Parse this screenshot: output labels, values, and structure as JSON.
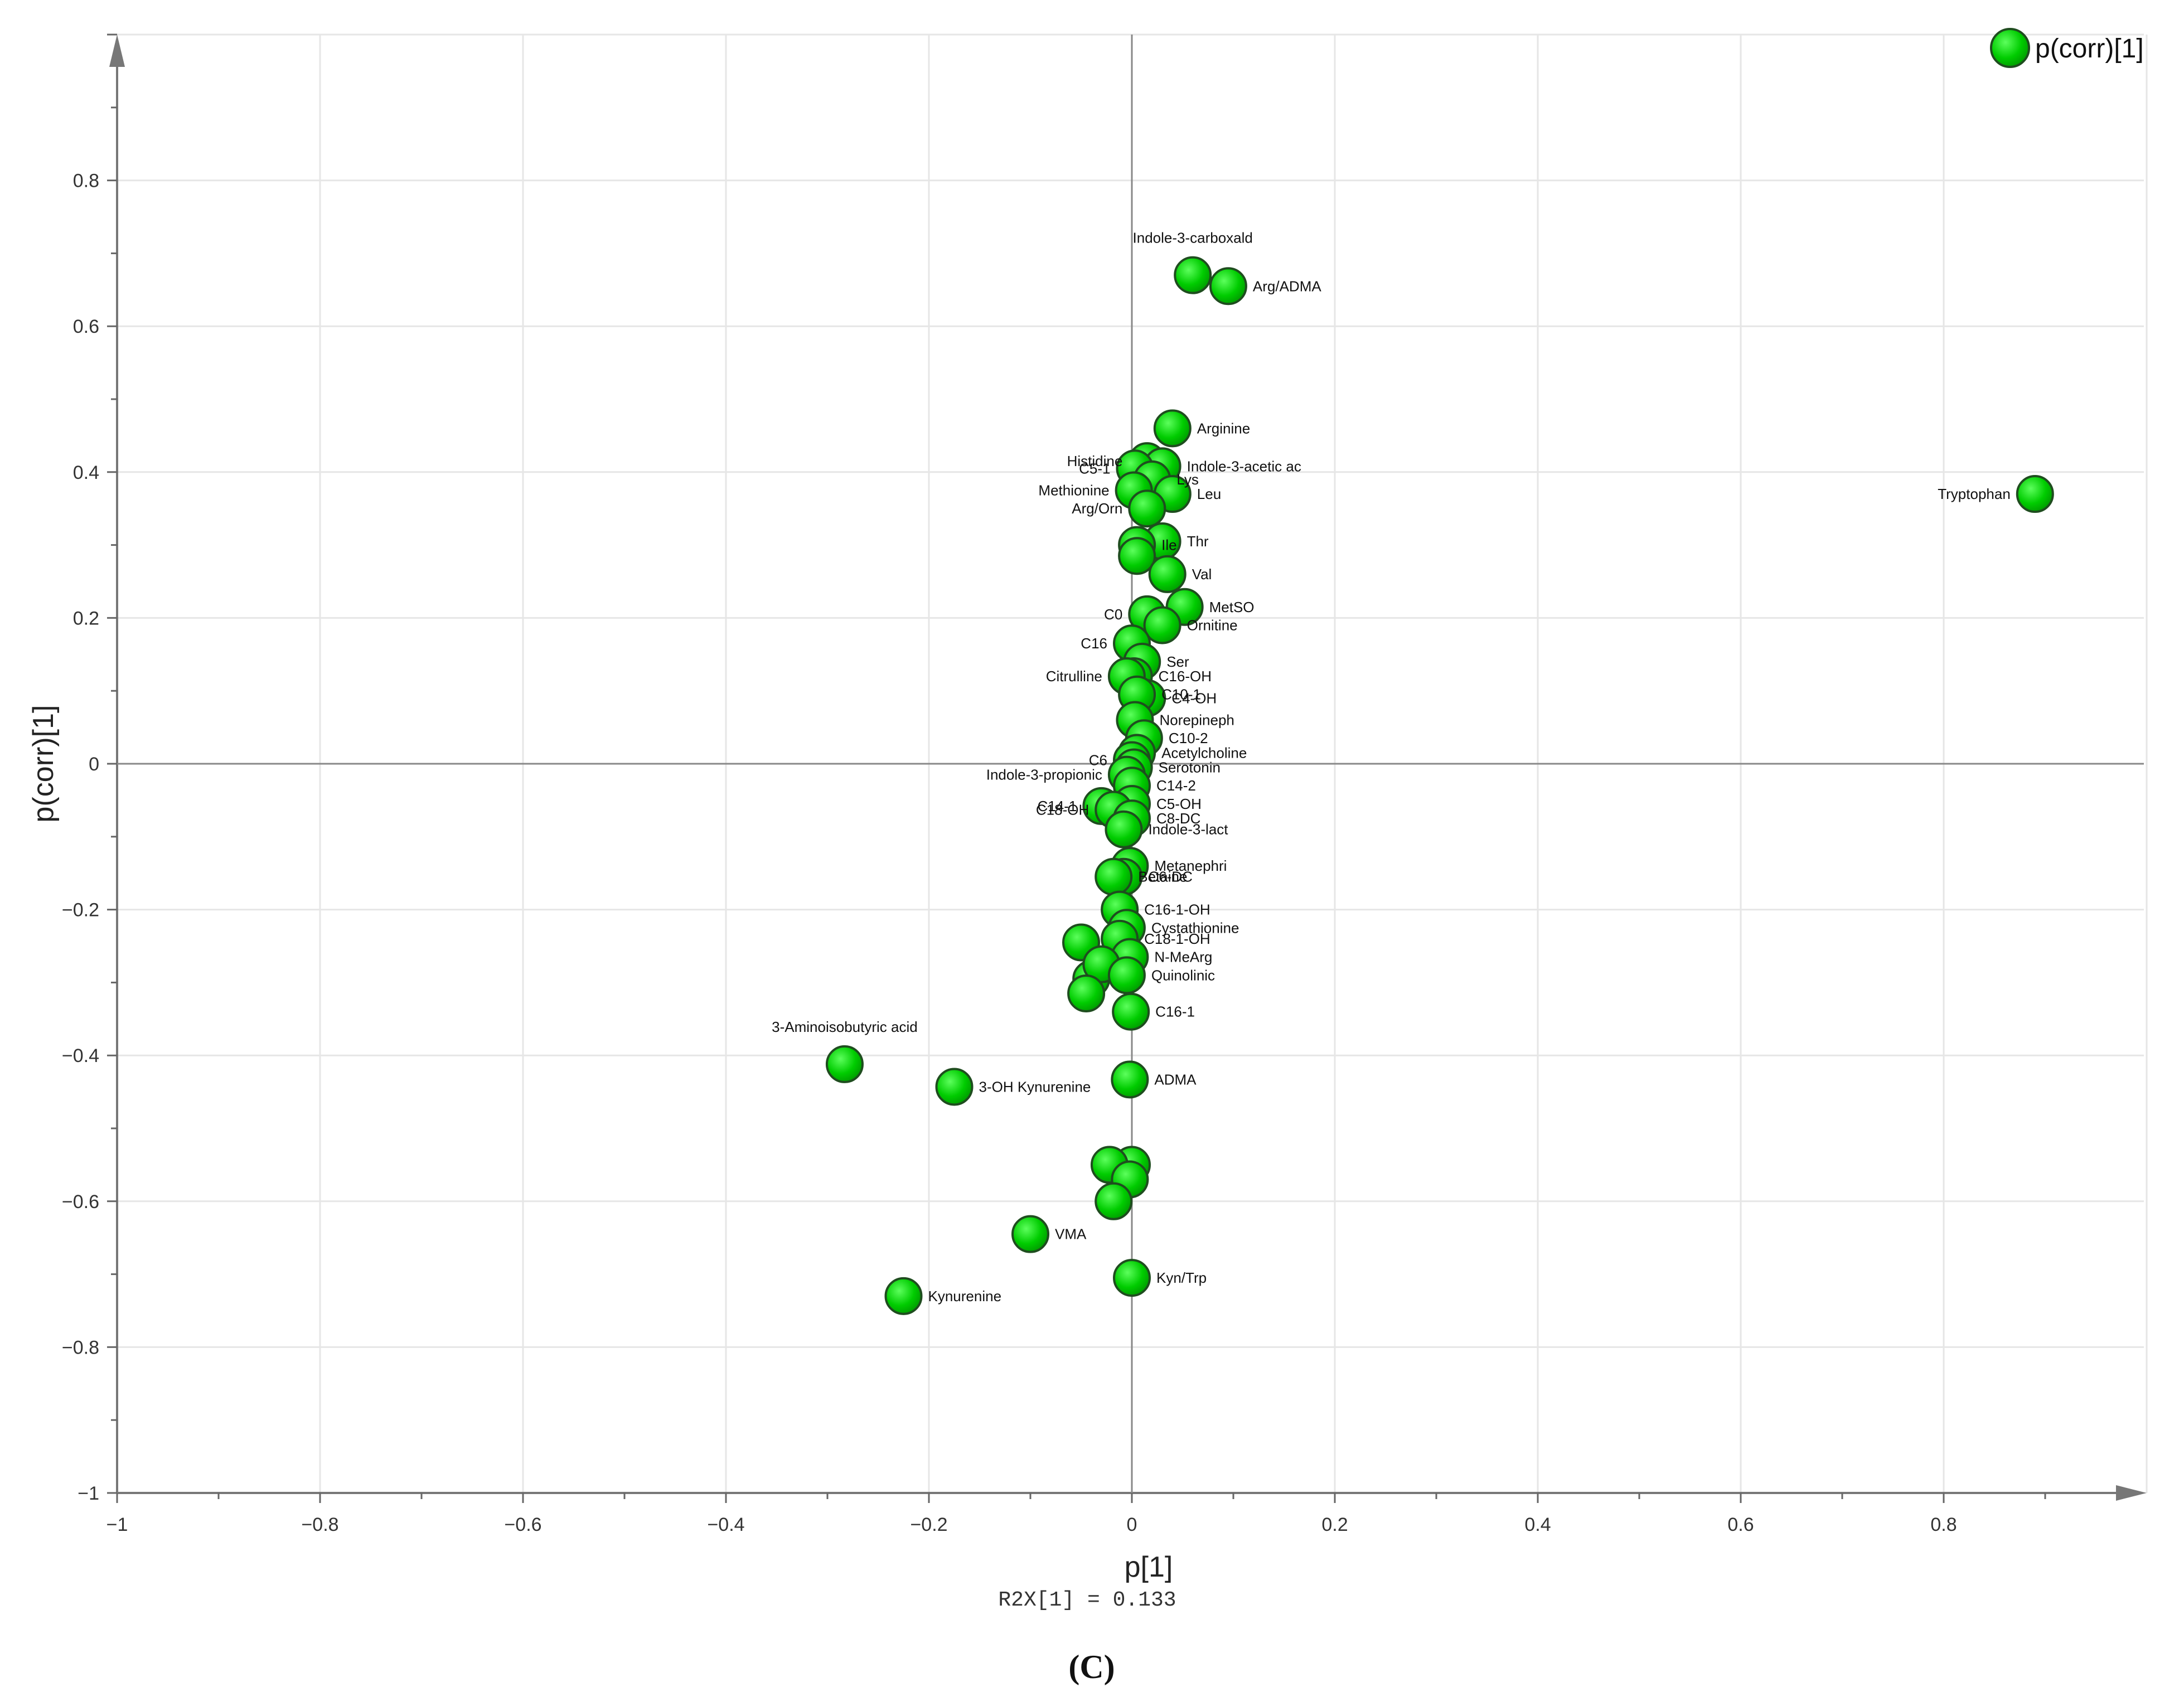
{
  "chart_data": {
    "type": "scatter",
    "xlabel": "p[1]",
    "ylabel": "p(corr)[1]",
    "r2x_label": "R2X[1] = 0.133",
    "panel_label": "(C)",
    "legend": "p(corr)[1]",
    "legend_position": "top-right",
    "grid": true,
    "xlim": [
      -1,
      1
    ],
    "ylim": [
      -1,
      1
    ],
    "x_ticks": [
      "−1",
      "−0.8",
      "−0.6",
      "−0.4",
      "−0.2",
      "0",
      "0.2",
      "0.4",
      "0.6",
      "0.8"
    ],
    "y_ticks": [
      "−1",
      "−0.8",
      "−0.6",
      "−0.4",
      "−0.2",
      "0",
      "0.2",
      "0.4",
      "0.6",
      "0.8"
    ],
    "marker_color": "#00cc00",
    "marker_edge": "#1f4d1f",
    "points": [
      {
        "name": "Tryptophan",
        "x": 0.89,
        "y": 0.37
      },
      {
        "name": "Indole-3-carboxald",
        "x": 0.06,
        "y": 0.67
      },
      {
        "name": "Arg/ADMA",
        "x": 0.095,
        "y": 0.655
      },
      {
        "name": "Arginine",
        "x": 0.04,
        "y": 0.46
      },
      {
        "name": "Histidine",
        "x": 0.015,
        "y": 0.415
      },
      {
        "name": "Indole-3-acetic ac",
        "x": 0.03,
        "y": 0.408
      },
      {
        "name": "C5-1",
        "x": 0.003,
        "y": 0.405
      },
      {
        "name": "Lys",
        "x": 0.02,
        "y": 0.39
      },
      {
        "name": "Methionine",
        "x": 0.002,
        "y": 0.375
      },
      {
        "name": "Leu",
        "x": 0.04,
        "y": 0.37
      },
      {
        "name": "Arg/Orn",
        "x": 0.015,
        "y": 0.35
      },
      {
        "name": "Thr",
        "x": 0.03,
        "y": 0.305
      },
      {
        "name": "Ile",
        "x": 0.005,
        "y": 0.3
      },
      {
        "name": "",
        "x": 0.005,
        "y": 0.285
      },
      {
        "name": "Val",
        "x": 0.035,
        "y": 0.26
      },
      {
        "name": "MetSO",
        "x": 0.052,
        "y": 0.215
      },
      {
        "name": "C0",
        "x": 0.015,
        "y": 0.205
      },
      {
        "name": "Ornitine",
        "x": 0.03,
        "y": 0.19
      },
      {
        "name": "C16",
        "x": 0.0,
        "y": 0.165
      },
      {
        "name": "Ser",
        "x": 0.01,
        "y": 0.14
      },
      {
        "name": "C16-OH",
        "x": 0.002,
        "y": 0.12
      },
      {
        "name": "Citrulline",
        "x": -0.005,
        "y": 0.12
      },
      {
        "name": "C4-OH",
        "x": 0.015,
        "y": 0.09
      },
      {
        "name": "C10-1",
        "x": 0.005,
        "y": 0.095
      },
      {
        "name": "Norepineph",
        "x": 0.003,
        "y": 0.06
      },
      {
        "name": "C10-2",
        "x": 0.012,
        "y": 0.035
      },
      {
        "name": "Acetylcholine",
        "x": 0.005,
        "y": 0.015
      },
      {
        "name": "C6",
        "x": 0.0,
        "y": 0.005
      },
      {
        "name": "Serotonin",
        "x": 0.002,
        "y": -0.005
      },
      {
        "name": "Indole-3-propionic",
        "x": -0.005,
        "y": -0.015
      },
      {
        "name": "C14-2",
        "x": 0.0,
        "y": -0.03
      },
      {
        "name": "C5-OH",
        "x": 0.0,
        "y": -0.055
      },
      {
        "name": "C14-1",
        "x": -0.03,
        "y": -0.058
      },
      {
        "name": "C18-OH",
        "x": -0.018,
        "y": -0.063
      },
      {
        "name": "C8-DC",
        "x": 0.0,
        "y": -0.075
      },
      {
        "name": "Indole-3-lact",
        "x": -0.008,
        "y": -0.09
      },
      {
        "name": "Metanephri",
        "x": -0.002,
        "y": -0.14
      },
      {
        "name": "C6-DC",
        "x": -0.008,
        "y": -0.155
      },
      {
        "name": "Betaine",
        "x": -0.018,
        "y": -0.155
      },
      {
        "name": "C16-1-OH",
        "x": -0.012,
        "y": -0.2
      },
      {
        "name": "Cystathionine",
        "x": -0.005,
        "y": -0.225
      },
      {
        "name": "C18-1-OH",
        "x": -0.012,
        "y": -0.24
      },
      {
        "name": "",
        "x": -0.05,
        "y": -0.245
      },
      {
        "name": "N-MeArg",
        "x": -0.002,
        "y": -0.265
      },
      {
        "name": "",
        "x": -0.04,
        "y": -0.295
      },
      {
        "name": "",
        "x": -0.03,
        "y": -0.275
      },
      {
        "name": "Quinolinic",
        "x": -0.005,
        "y": -0.29
      },
      {
        "name": "",
        "x": -0.045,
        "y": -0.315
      },
      {
        "name": "C16-1",
        "x": -0.001,
        "y": -0.34
      },
      {
        "name": "3-Aminoisobutyric acid",
        "x": -0.283,
        "y": -0.412
      },
      {
        "name": "3-OH Kynurenine",
        "x": -0.175,
        "y": -0.443
      },
      {
        "name": "ADMA",
        "x": -0.002,
        "y": -0.433
      },
      {
        "name": "",
        "x": 0.0,
        "y": -0.55
      },
      {
        "name": "",
        "x": -0.022,
        "y": -0.55
      },
      {
        "name": "",
        "x": -0.002,
        "y": -0.57
      },
      {
        "name": "",
        "x": -0.018,
        "y": -0.6
      },
      {
        "name": "VMA",
        "x": -0.1,
        "y": -0.645
      },
      {
        "name": "Kyn/Trp",
        "x": 0.0,
        "y": -0.705
      },
      {
        "name": "Kynurenine",
        "x": -0.225,
        "y": -0.73
      }
    ],
    "label_placement": {
      "Tryptophan": "left",
      "Indole-3-carboxald": "above",
      "Histidine": "left",
      "C5-1": "left",
      "Methionine": "left",
      "Arg/Orn": "left",
      "C0": "left",
      "C16": "left",
      "Citrulline": "left",
      "C6": "left",
      "Indole-3-propionic": "left",
      "C14-1": "left",
      "C18-OH": "left",
      "3-Aminoisobutyric acid": "above"
    }
  }
}
